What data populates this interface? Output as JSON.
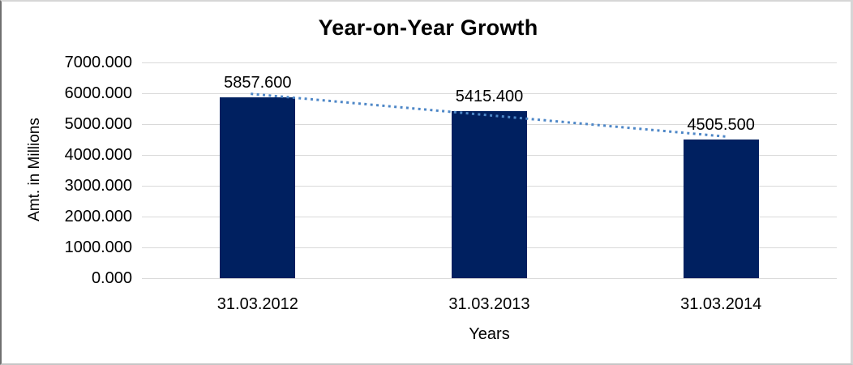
{
  "chart_data": {
    "type": "bar",
    "title": "Year-on-Year Growth",
    "xlabel": "Years",
    "ylabel": "Amt. in Millions",
    "categories": [
      "31.03.2012",
      "31.03.2013",
      "31.03.2014"
    ],
    "values": [
      5857.6,
      5415.4,
      4505.5
    ],
    "data_labels": [
      "5857.600",
      "5415.400",
      "4505.500"
    ],
    "ytick_labels": [
      "0.000",
      "1000.000",
      "2000.000",
      "3000.000",
      "4000.000",
      "5000.000",
      "6000.000",
      "7000.000"
    ],
    "ytick_step": 1000,
    "ylim": [
      0,
      7000
    ],
    "grid": "horizontal",
    "legend": "none",
    "trendline": {
      "type": "linear",
      "style": "dotted"
    },
    "colors": {
      "bar": "#002060",
      "trendline": "#4e87c7",
      "gridline": "#d9d9d9",
      "text": "#000000",
      "background": "#ffffff"
    }
  }
}
